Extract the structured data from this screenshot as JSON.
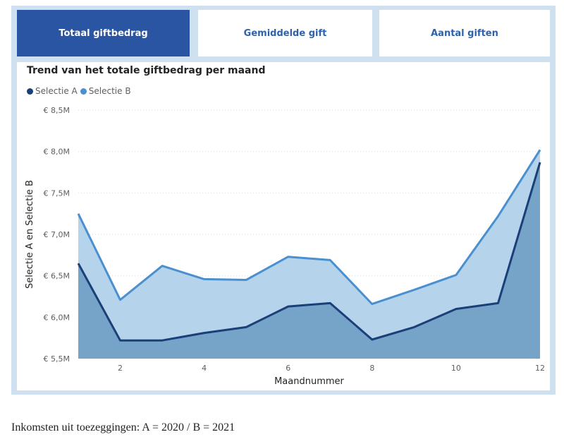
{
  "tabs": [
    {
      "label": "Totaal giftbedrag",
      "active": true
    },
    {
      "label": "Gemiddelde gift",
      "active": false
    },
    {
      "label": "Aantal giften",
      "active": false
    }
  ],
  "colors": {
    "tab_active_bg": "#2a55a2",
    "panel_bg": "#cfe0f1",
    "series_a_line": "#1b3f78",
    "series_a_fill": "#76a4c8",
    "series_b_line": "#4a90d0",
    "series_b_fill": "#b5d3eb"
  },
  "caption": "Inkomsten uit toezeggingen: A = 2020 / B = 2021",
  "chart_data": {
    "type": "area",
    "title": "Trend van het totale giftbedrag per maand",
    "xlabel": "Maandnummer",
    "ylabel": "Selectie A en Selectie B",
    "x": [
      1,
      2,
      3,
      4,
      5,
      6,
      7,
      8,
      9,
      10,
      11,
      12
    ],
    "x_ticks": [
      2,
      4,
      6,
      8,
      10,
      12
    ],
    "ylim": [
      5.5,
      8.5
    ],
    "y_ticks": [
      5.5,
      6.0,
      6.5,
      7.0,
      7.5,
      8.0,
      8.5
    ],
    "y_tick_labels": [
      "€ 5,5M",
      "€ 6,0M",
      "€ 6,5M",
      "€ 7,0M",
      "€ 7,5M",
      "€ 8,0M",
      "€ 8,5M"
    ],
    "grid": true,
    "legend_position": "top-left",
    "series": [
      {
        "name": "Selectie A",
        "values": [
          6.65,
          5.72,
          5.72,
          5.81,
          5.88,
          6.13,
          6.17,
          5.73,
          5.88,
          6.1,
          6.17,
          7.87
        ]
      },
      {
        "name": "Selectie B",
        "values": [
          7.25,
          6.21,
          6.62,
          6.46,
          6.45,
          6.73,
          6.69,
          6.16,
          6.33,
          6.51,
          7.22,
          8.02
        ]
      }
    ]
  }
}
